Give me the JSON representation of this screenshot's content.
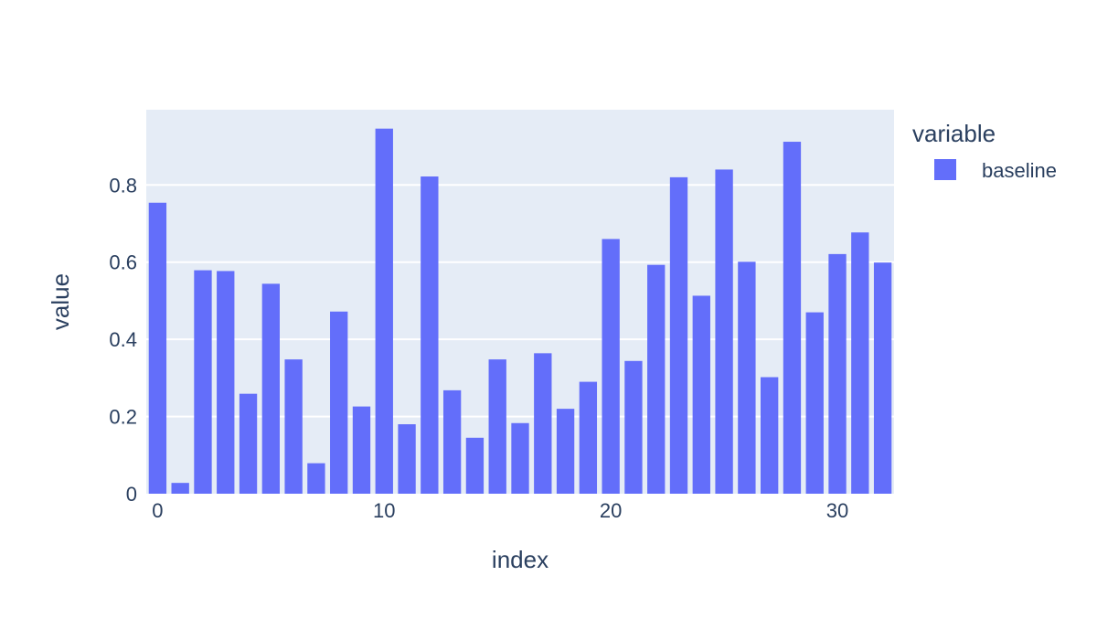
{
  "chart_data": {
    "type": "bar",
    "xlabel": "index",
    "ylabel": "value",
    "xlim": [
      -0.5,
      32.5
    ],
    "ylim": [
      0,
      0.995
    ],
    "xticks": [
      0,
      10,
      20,
      30
    ],
    "yticks": [
      0,
      0.2,
      0.4,
      0.6,
      0.8
    ],
    "grid": true,
    "legend": {
      "title": "variable",
      "position": "right"
    },
    "colors": {
      "plot_bg": "#e5ecf6",
      "grid": "#ffffff",
      "bar": "#636efa",
      "text": "#2a3f5f"
    },
    "series": [
      {
        "name": "baseline",
        "x": [
          0,
          1,
          2,
          3,
          4,
          5,
          6,
          7,
          8,
          9,
          10,
          11,
          12,
          13,
          14,
          15,
          16,
          17,
          18,
          19,
          20,
          21,
          22,
          23,
          24,
          25,
          26,
          27,
          28,
          29,
          30,
          31,
          32
        ],
        "values": [
          0.754,
          0.028,
          0.579,
          0.577,
          0.259,
          0.544,
          0.348,
          0.079,
          0.472,
          0.226,
          0.946,
          0.18,
          0.822,
          0.268,
          0.145,
          0.348,
          0.183,
          0.364,
          0.22,
          0.29,
          0.66,
          0.344,
          0.593,
          0.82,
          0.513,
          0.84,
          0.601,
          0.302,
          0.912,
          0.47,
          0.621,
          0.677,
          0.599
        ]
      }
    ]
  }
}
